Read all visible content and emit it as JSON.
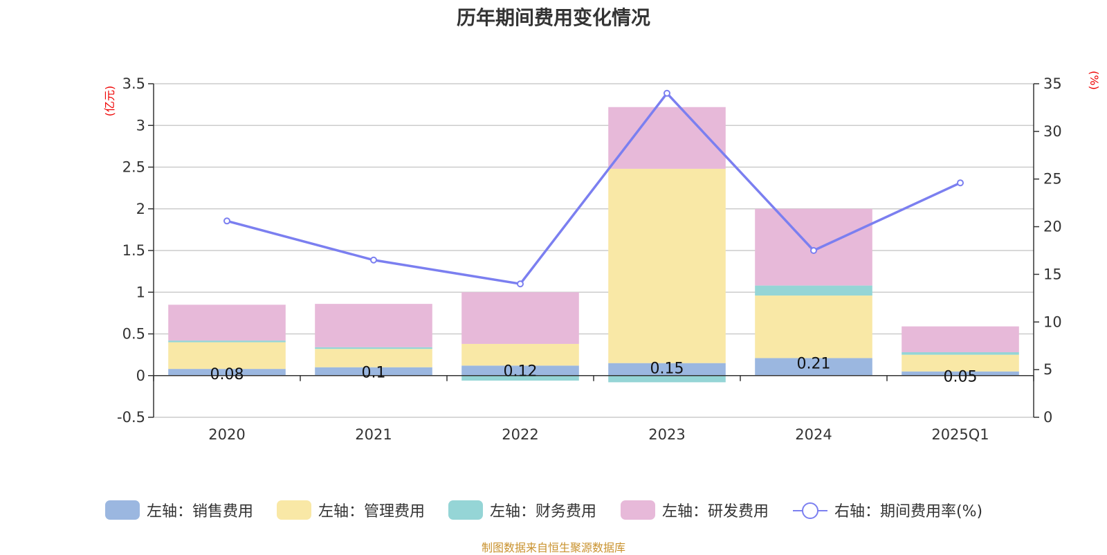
{
  "chart_data": {
    "type": "bar",
    "title": "历年期间费用变化情况",
    "categories": [
      "2020",
      "2021",
      "2022",
      "2023",
      "2024",
      "2025Q1"
    ],
    "y_left": {
      "unit": "(亿元)",
      "min": -0.5,
      "max": 3.5,
      "ticks": [
        "3.5",
        "3",
        "2.5",
        "2",
        "1.5",
        "1",
        "0.5",
        "0",
        "-0.5"
      ]
    },
    "y_right": {
      "unit": "(%)",
      "min": 0,
      "max": 35,
      "ticks": [
        "35",
        "30",
        "25",
        "20",
        "15",
        "10",
        "5",
        "0"
      ]
    },
    "series": [
      {
        "name": "左轴：销售费用",
        "type": "bar",
        "axis": "left",
        "color": "#9bb7e0",
        "values": [
          0.08,
          0.1,
          0.12,
          0.15,
          0.21,
          0.05
        ],
        "labels": [
          "0.08",
          "0.1",
          "0.12",
          "0.15",
          "0.21",
          "0.05"
        ]
      },
      {
        "name": "左轴：管理费用",
        "type": "bar",
        "axis": "left",
        "color": "#f9e8a6",
        "values": [
          0.32,
          0.22,
          0.26,
          2.33,
          0.75,
          0.2
        ]
      },
      {
        "name": "左轴：财务费用",
        "type": "bar",
        "axis": "left",
        "color": "#95d5d6",
        "values": [
          0.02,
          0.02,
          -0.06,
          -0.08,
          0.12,
          0.03
        ]
      },
      {
        "name": "左轴：研发费用",
        "type": "bar",
        "axis": "left",
        "color": "#e7b9d9",
        "values": [
          0.43,
          0.52,
          0.62,
          0.74,
          0.92,
          0.31
        ]
      },
      {
        "name": "右轴：期间费用率(%)",
        "type": "line",
        "axis": "right",
        "color": "#7b7ff0",
        "values": [
          20.6,
          16.5,
          14.0,
          34.0,
          17.5,
          24.6
        ]
      }
    ],
    "grid": true,
    "legend_position": "bottom",
    "source": "制图数据来自恒生聚源数据库"
  }
}
